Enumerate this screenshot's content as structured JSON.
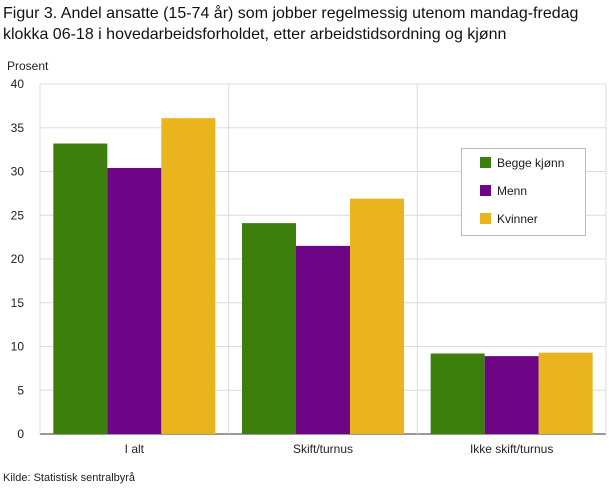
{
  "title_line1": "Figur 3. Andel ansatte (15-74 år) som jobber regelmessig utenom mandag-fredag",
  "title_line2": "klokka 06-18 i hovedarbeidsforholdet, etter arbeidstidsordning og kjønn",
  "source": "Kilde: Statistisk sentralbyrå",
  "chart_data": {
    "type": "bar",
    "title": "Figur 3. Andel ansatte (15-74 år) som jobber regelmessig utenom mandag-fredag klokka 06-18 i hovedarbeidsforholdet, etter arbeidstidsordning og kjønn",
    "xlabel": "",
    "ylabel": "Prosent",
    "ylim": [
      0,
      40
    ],
    "yticks": [
      0,
      5,
      10,
      15,
      20,
      25,
      30,
      35,
      40
    ],
    "categories": [
      "I alt",
      "Skift/turnus",
      "Ikke skift/turnus"
    ],
    "series": [
      {
        "name": "Begge kjønn",
        "color": "#3d7f0c",
        "values": [
          33.2,
          24.1,
          9.2
        ]
      },
      {
        "name": "Menn",
        "color": "#6d0586",
        "values": [
          30.4,
          21.5,
          8.9
        ]
      },
      {
        "name": "Kvinner",
        "color": "#eab41e",
        "values": [
          36.1,
          26.9,
          9.3
        ]
      }
    ],
    "grid": "horizontal",
    "legend_position": "right"
  }
}
